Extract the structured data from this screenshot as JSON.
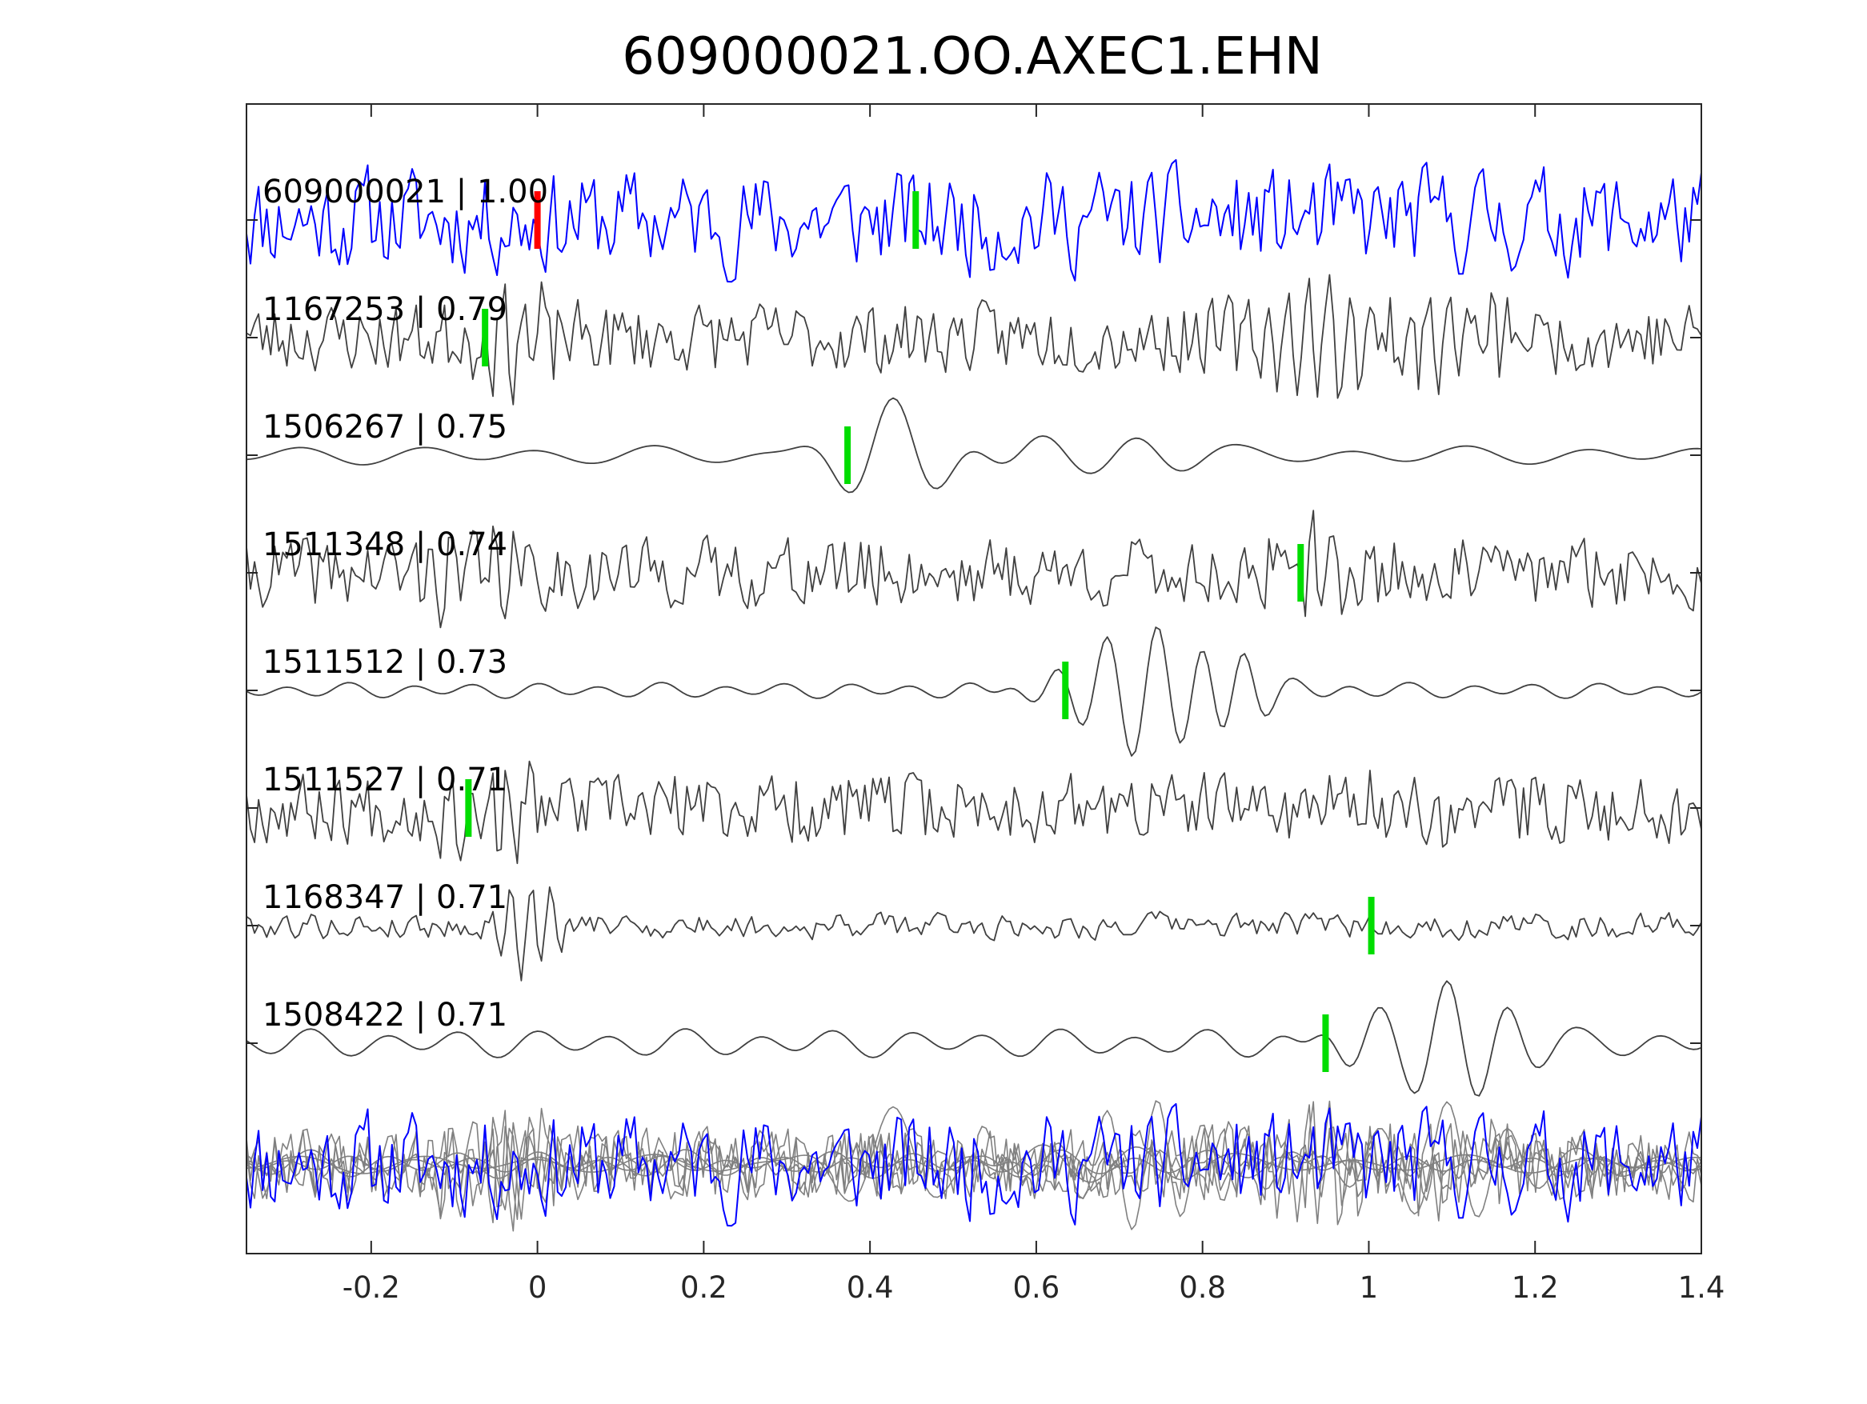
{
  "chart_data": {
    "type": "line",
    "title": "609000021.OO.AXEC1.EHN",
    "xlabel": "",
    "ylabel": "",
    "xlim": [
      -0.35,
      1.4
    ],
    "xticks": [
      -0.2,
      0,
      0.2,
      0.4,
      0.6,
      0.8,
      1,
      1.2,
      1.4
    ],
    "xtick_labels": [
      "-0.2",
      "0",
      "0.2",
      "0.4",
      "0.6",
      "0.8",
      "1",
      "1.2",
      "1.4"
    ],
    "grid": false,
    "legend": "none",
    "colors": {
      "reference": "#0000ff",
      "match": "#404040",
      "overlay": "#808080",
      "pick_green": "#00dd00",
      "pick_red": "#ff0000",
      "axis": "#262626"
    },
    "series": [
      {
        "label": "609000021 | 1.00",
        "id": "609000021",
        "cc": 1.0,
        "pick_x": 0.455,
        "origin_pick_x": 0.0,
        "style": "broadband",
        "amp": 1.0,
        "seed": 11,
        "bursts": []
      },
      {
        "label": "1167253 | 0.79",
        "id": "1167253",
        "cc": 0.79,
        "pick_x": -0.063,
        "style": "hf",
        "amp": 0.9,
        "seed": 23,
        "bursts": [
          [
            -0.02,
            1.0,
            0.06
          ],
          [
            0.95,
            1.1,
            0.1
          ],
          [
            1.12,
            0.9,
            0.08
          ]
        ]
      },
      {
        "label": "1506267 | 0.75",
        "id": "1506267",
        "cc": 0.75,
        "pick_x": 0.373,
        "style": "lf",
        "amp": 0.3,
        "seed": 37,
        "period": 0.14,
        "bursts": [
          [
            0.42,
            1.6,
            0.08
          ],
          [
            0.6,
            0.6,
            0.1
          ],
          [
            0.72,
            0.4,
            0.08
          ]
        ]
      },
      {
        "label": "1511348 | 0.74",
        "id": "1511348",
        "cc": 0.74,
        "pick_x": 0.918,
        "style": "hf",
        "amp": 0.9,
        "seed": 41,
        "bursts": [
          [
            -0.08,
            1.1,
            0.06
          ],
          [
            0.93,
            0.9,
            0.06
          ]
        ]
      },
      {
        "label": "1511512 | 0.73",
        "id": "1511512",
        "cc": 0.73,
        "pick_x": 0.635,
        "style": "lf",
        "amp": 0.25,
        "seed": 53,
        "period": 0.075,
        "bursts": [
          [
            0.74,
            1.9,
            0.12
          ],
          [
            0.84,
            1.6,
            0.05
          ]
        ]
      },
      {
        "label": "1511527 | 0.71",
        "id": "1511527",
        "cc": 0.71,
        "pick_x": -0.083,
        "style": "hf",
        "amp": 0.9,
        "seed": 67,
        "bursts": [
          [
            -0.06,
            1.2,
            0.06
          ],
          [
            1.05,
            0.7,
            0.08
          ]
        ]
      },
      {
        "label": "1168347 | 0.71",
        "id": "1168347",
        "cc": 0.71,
        "pick_x": 1.003,
        "style": "mf",
        "amp": 0.45,
        "seed": 79,
        "bursts": [
          [
            -0.01,
            1.4,
            0.04
          ]
        ]
      },
      {
        "label": "1508422 | 0.71",
        "id": "1508422",
        "cc": 0.71,
        "pick_x": 0.948,
        "style": "lf",
        "amp": 0.45,
        "seed": 97,
        "period": 0.09,
        "bursts": [
          [
            1.09,
            1.7,
            0.1
          ],
          [
            1.0,
            1.0,
            0.06
          ]
        ]
      }
    ]
  }
}
